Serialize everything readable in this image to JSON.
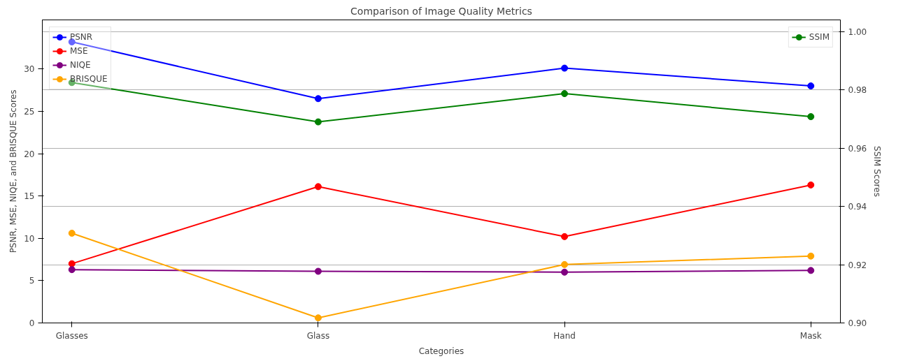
{
  "chart_data": {
    "type": "line",
    "title": "Comparison of Image Quality Metrics",
    "xlabel": "Categories",
    "ylabel": "PSNR, MSE, NIQE, and BRISQUE Scores",
    "y2label": "SSIM Scores",
    "categories": [
      "Glasses",
      "Glass",
      "Hand",
      "Mask"
    ],
    "series": [
      {
        "name": "PSNR",
        "color": "#0000ff",
        "values": [
          33.2,
          26.5,
          30.1,
          28.0
        ]
      },
      {
        "name": "MSE",
        "color": "#ff0000",
        "values": [
          7.0,
          16.1,
          10.2,
          16.3
        ]
      },
      {
        "name": "NIQE",
        "color": "#800080",
        "values": [
          6.3,
          6.1,
          6.0,
          6.2
        ]
      },
      {
        "name": "BRISQUE",
        "color": "#ffa500",
        "values": [
          10.6,
          0.6,
          6.9,
          7.9
        ]
      },
      {
        "name": "SSIM",
        "color": "#008000",
        "values": [
          0.9825,
          0.969,
          0.9787,
          0.9708
        ],
        "axis": "y2"
      }
    ],
    "ylim": [
      0,
      35.8
    ],
    "yticks": [
      0,
      5,
      10,
      15,
      20,
      25,
      30
    ],
    "y2lim": [
      0.9,
      1.004
    ],
    "y2ticks": [
      {
        "value": 0.9,
        "label": "0.90"
      },
      {
        "value": 0.92,
        "label": "0.92"
      },
      {
        "value": 0.94,
        "label": "0.94"
      },
      {
        "value": 0.96,
        "label": "0.96"
      },
      {
        "value": 0.98,
        "label": "0.98"
      },
      {
        "value": 1.0,
        "label": "1.00"
      }
    ],
    "grid": "y2",
    "legend": "top left",
    "marker": "circle",
    "line_style": "solid"
  }
}
